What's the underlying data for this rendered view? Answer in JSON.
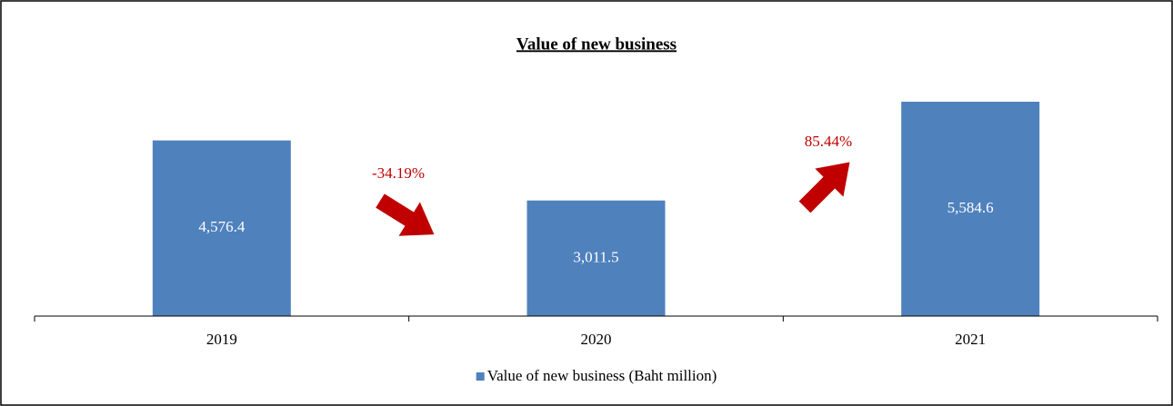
{
  "chart_data": {
    "type": "bar",
    "title": "Value of new business",
    "categories": [
      "2019",
      "2020",
      "2021"
    ],
    "series": [
      {
        "name": "Value of new business (Baht million)",
        "color": "#4f81bd",
        "values": [
          4576.4,
          3011.5,
          5584.6
        ],
        "value_labels": [
          "4,576.4",
          "3,011.5",
          "5,584.6"
        ]
      }
    ],
    "annotations": [
      {
        "text": "-34.19%",
        "color": "#c00000"
      },
      {
        "text": "85.44%",
        "color": "#c00000"
      }
    ],
    "legend": "bottom"
  }
}
